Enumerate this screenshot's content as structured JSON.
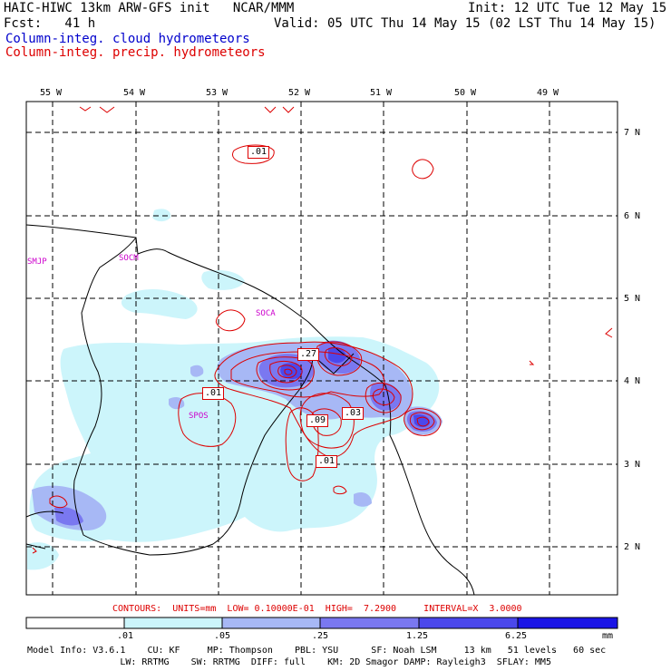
{
  "header": {
    "line1_left": "HAIC-HIWC 13km ARW-GFS init   NCAR/MMM",
    "line1_right": "Init: 12 UTC Tue 12 May 15",
    "line2_left": "Fcst:   41 h",
    "line2_right": "Valid: 05 UTC Thu 14 May 15 (02 LST Thu 14 May 15)",
    "line3": "Column-integ. cloud hydrometeors",
    "line4": "Column-integ. precip. hydrometeors"
  },
  "map": {
    "lon_labels": [
      "55 W",
      "54 W",
      "53 W",
      "52 W",
      "51 W",
      "50 W",
      "49 W"
    ],
    "lat_labels": [
      "7 N",
      "6 N",
      "5 N",
      "4 N",
      "3 N",
      "2 N"
    ],
    "stations": [
      "SMJP",
      "SOCM",
      "SOCA",
      "SPOS"
    ],
    "contour_labels": [
      ".01",
      ".27",
      ".01",
      ".09",
      ".03",
      ".01"
    ]
  },
  "contour_info": "CONTOURS:  UNITS=mm  LOW= 0.10000E-01  HIGH=  7.2900     INTERVAL=X  3.0000",
  "colorbar": {
    "labels": [
      ".01",
      ".05",
      ".25",
      "1.25",
      "6.25"
    ],
    "units": "mm",
    "colors": [
      "#ffffff",
      "#ccf5fb",
      "#a7b8f5",
      "#7a78f0",
      "#4b48ec",
      "#1a14e6"
    ]
  },
  "footer": {
    "line1": "Model Info: V3.6.1    CU: KF     MP: Thompson    PBL: YSU      SF: Noah LSM     13 km   51 levels   60 sec",
    "line2": "                 LW: RRTMG    SW: RRTMG  DIFF: full    KM: 2D Smagor DAMP: Rayleigh3  SFLAY: MM5"
  }
}
